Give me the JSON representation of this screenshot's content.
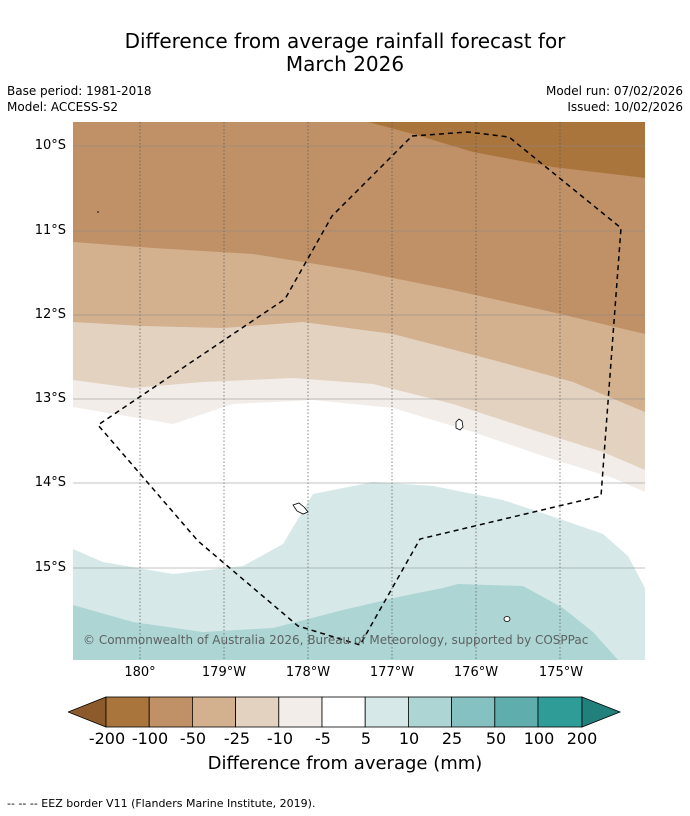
{
  "title_line1": "Difference from average rainfall forecast for",
  "title_line2": "March 2026",
  "base_period": "Base period: 1981-2018",
  "model": "Model: ACCESS-S2",
  "model_run": "Model run: 07/02/2026",
  "issued": "Issued: 10/02/2026",
  "lat_labels": [
    "10°S",
    "11°S",
    "12°S",
    "13°S",
    "14°S",
    "15°S"
  ],
  "lon_labels": [
    "180°",
    "179°W",
    "178°W",
    "177°W",
    "176°W",
    "175°W"
  ],
  "copyright": "© Commonwealth of Australia 2026, Bureau of Meteorology, supported by COSPPac",
  "colorbar": {
    "ticks": [
      "-200",
      "-100",
      "-50",
      "-25",
      "-10",
      "-5",
      "5",
      "10",
      "25",
      "50",
      "100",
      "200"
    ],
    "colors": [
      "#8c5a2b",
      "#aa743d",
      "#c09166",
      "#d3b08e",
      "#e4d2c1",
      "#f2ede8",
      "#ffffff",
      "#d6e9e8",
      "#acd5d4",
      "#85c1c1",
      "#5fadad",
      "#309c98",
      "#21807c"
    ],
    "label": "Difference from average (mm)"
  },
  "footnote": "--  --  -- EEZ border V11 (Flanders Marine Institute, 2019)."
}
